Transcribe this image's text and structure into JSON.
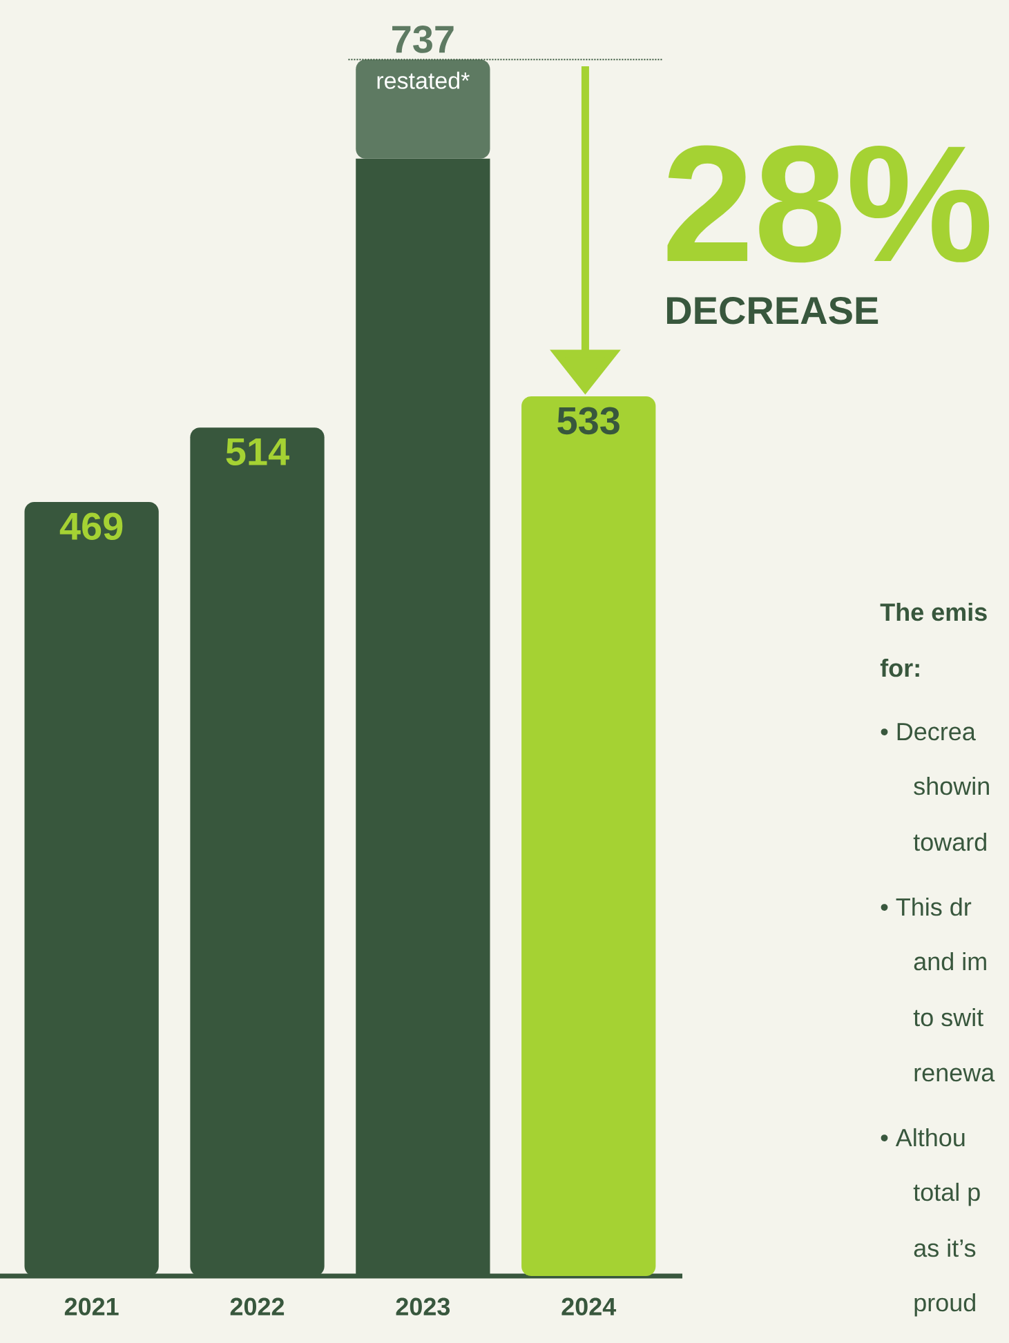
{
  "chart_data": {
    "type": "bar",
    "stacked": true,
    "legend": false,
    "categories": [
      "2021",
      "2022",
      "2023",
      "2024"
    ],
    "series": [
      {
        "colors": [
          "#38573d",
          "#38573d",
          "#38573d",
          "#a5d233"
        ],
        "values": [
          469,
          514,
          677,
          533
        ],
        "value_labels": [
          "469",
          "514",
          null,
          "533"
        ]
      },
      {
        "name": "restated*",
        "color": "#5e7a62",
        "values": [
          null,
          null,
          60,
          null
        ]
      }
    ],
    "totals": [
      null,
      null,
      "737",
      null
    ],
    "ref_lines": [
      {
        "axis": "y",
        "value": 737,
        "color": "#38573d",
        "line_style": "dotted"
      }
    ],
    "annotations": [
      "28%",
      "DECREASE",
      "The emis",
      "for:",
      "• Decrea",
      "showin",
      "toward",
      "• This dr",
      "and im",
      "to swit",
      "renewa",
      "• Althou",
      "total p",
      "as it’s",
      "proud"
    ]
  }
}
